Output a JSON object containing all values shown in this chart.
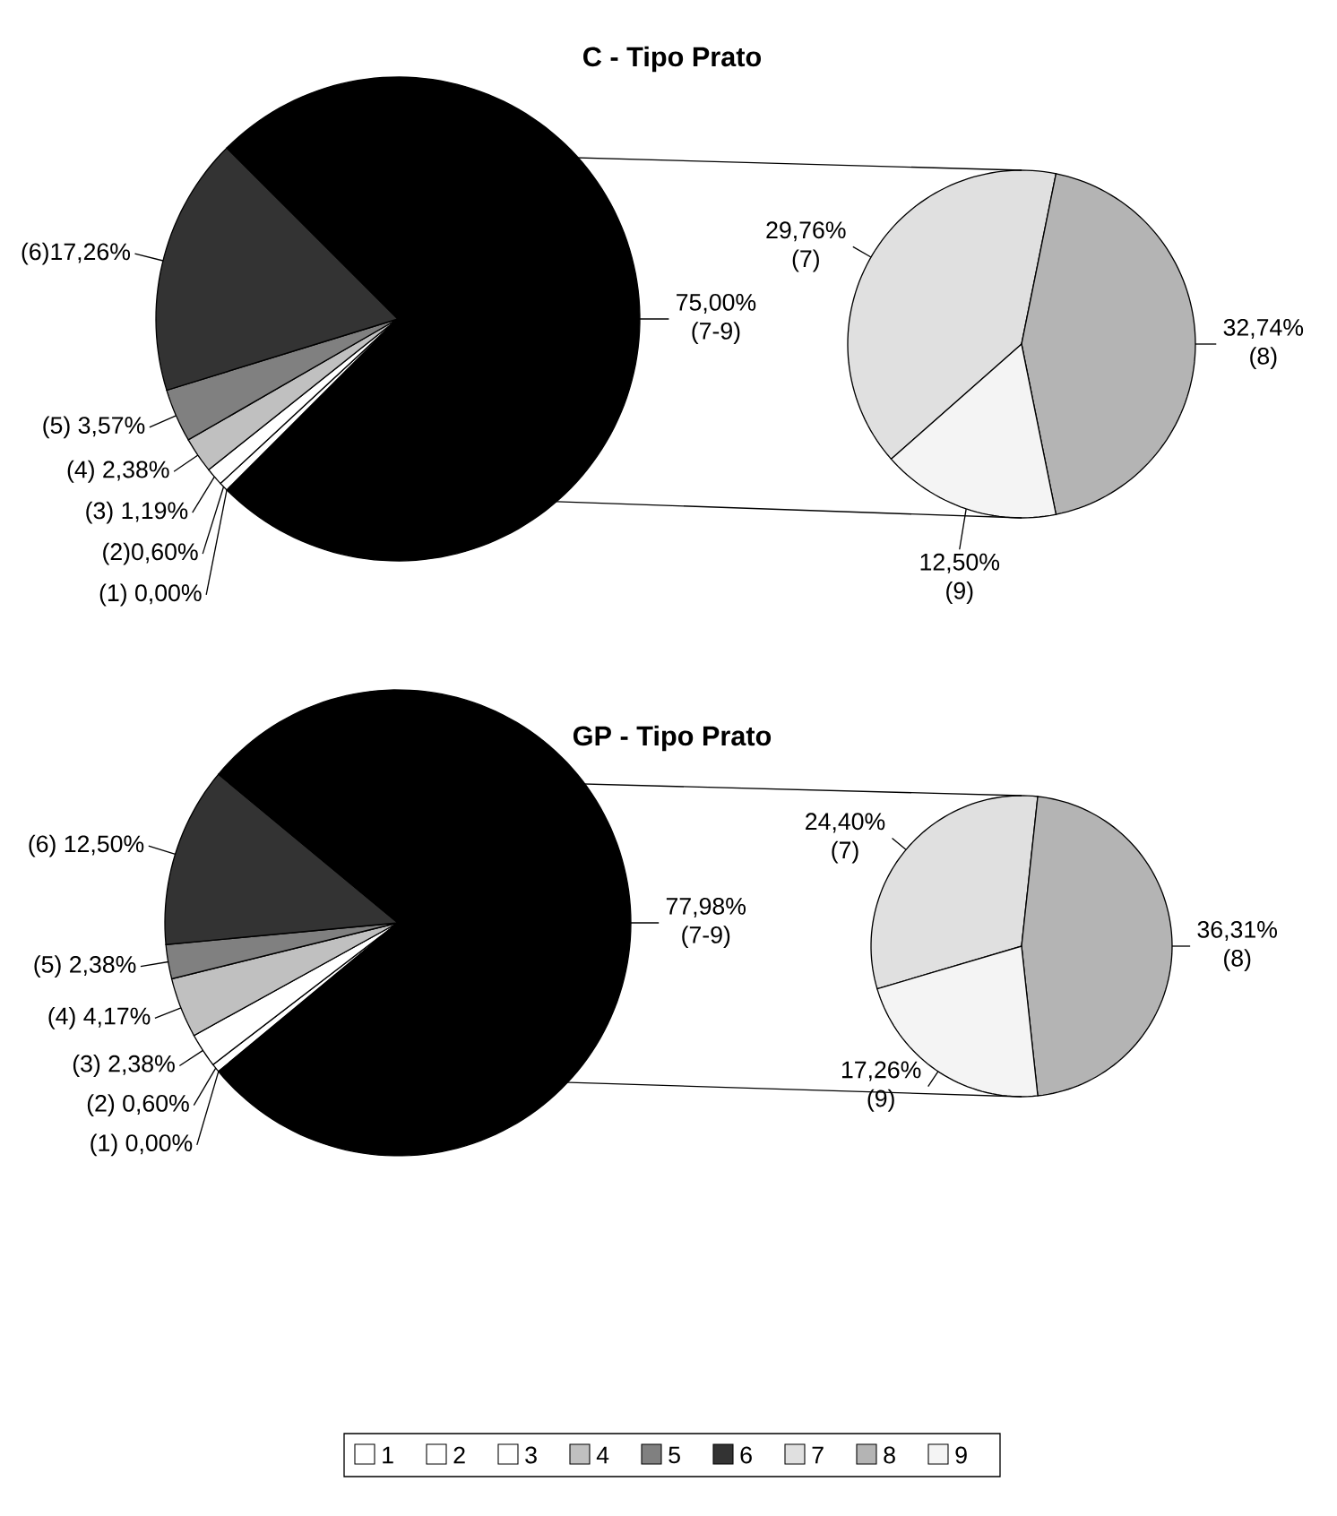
{
  "chart_data": [
    {
      "type": "pie",
      "title": "C - Tipo Prato",
      "categories": [
        null,
        null,
        null,
        null,
        null,
        null,
        null
      ],
      "values": [
        0.0,
        0.6,
        1.19,
        2.38,
        3.57,
        17.26,
        75.0
      ],
      "colors": [
        "#ffffff",
        "#ffffff",
        "#ffffff",
        "#c0c0c0",
        "#808080",
        "#333333",
        "#000000"
      ],
      "value_labels": [
        "(1) 0,00%",
        "(2)0,60%",
        "(3) 1,19%",
        "(4) 2,38%",
        "(5) 3,57%",
        "(6)17,26%",
        "75,00% (7-9)"
      ]
    },
    {
      "type": "pie",
      "categories": [
        null,
        null,
        null
      ],
      "values": [
        29.76,
        32.74,
        12.5
      ],
      "colors": [
        "#e0e0e0",
        "#b4b4b4",
        "#f4f4f4"
      ],
      "value_labels": [
        "29,76% (7)",
        "32,74% (8)",
        "12,50% (9)"
      ]
    },
    {
      "type": "pie",
      "title": "GP - Tipo Prato",
      "categories": [
        "1",
        "2",
        "3",
        "4",
        "5",
        "6",
        null
      ],
      "values": [
        0.0,
        0.6,
        2.38,
        4.17,
        2.38,
        12.5,
        77.98
      ],
      "colors": [
        "#ffffff",
        "#ffffff",
        "#ffffff",
        "#c0c0c0",
        "#808080",
        "#333333",
        "#000000"
      ],
      "value_labels": [
        "(1) 0,00%",
        "(2) 0,60%",
        "(3) 2,38%",
        "(4) 4,17%",
        "(5) 2,38%",
        "(6) 12,50%",
        "77,98% (7-9)"
      ],
      "legend": "bottom"
    },
    {
      "type": "pie",
      "categories": [
        "7",
        "8",
        "9"
      ],
      "values": [
        24.4,
        36.31,
        17.26
      ],
      "colors": [
        "#e0e0e0",
        "#b4b4b4",
        "#f4f4f4"
      ],
      "value_labels": [
        "24,40% (7)",
        "36,31% (8)",
        "17,26% (9)"
      ],
      "legend": "bottom"
    }
  ]
}
